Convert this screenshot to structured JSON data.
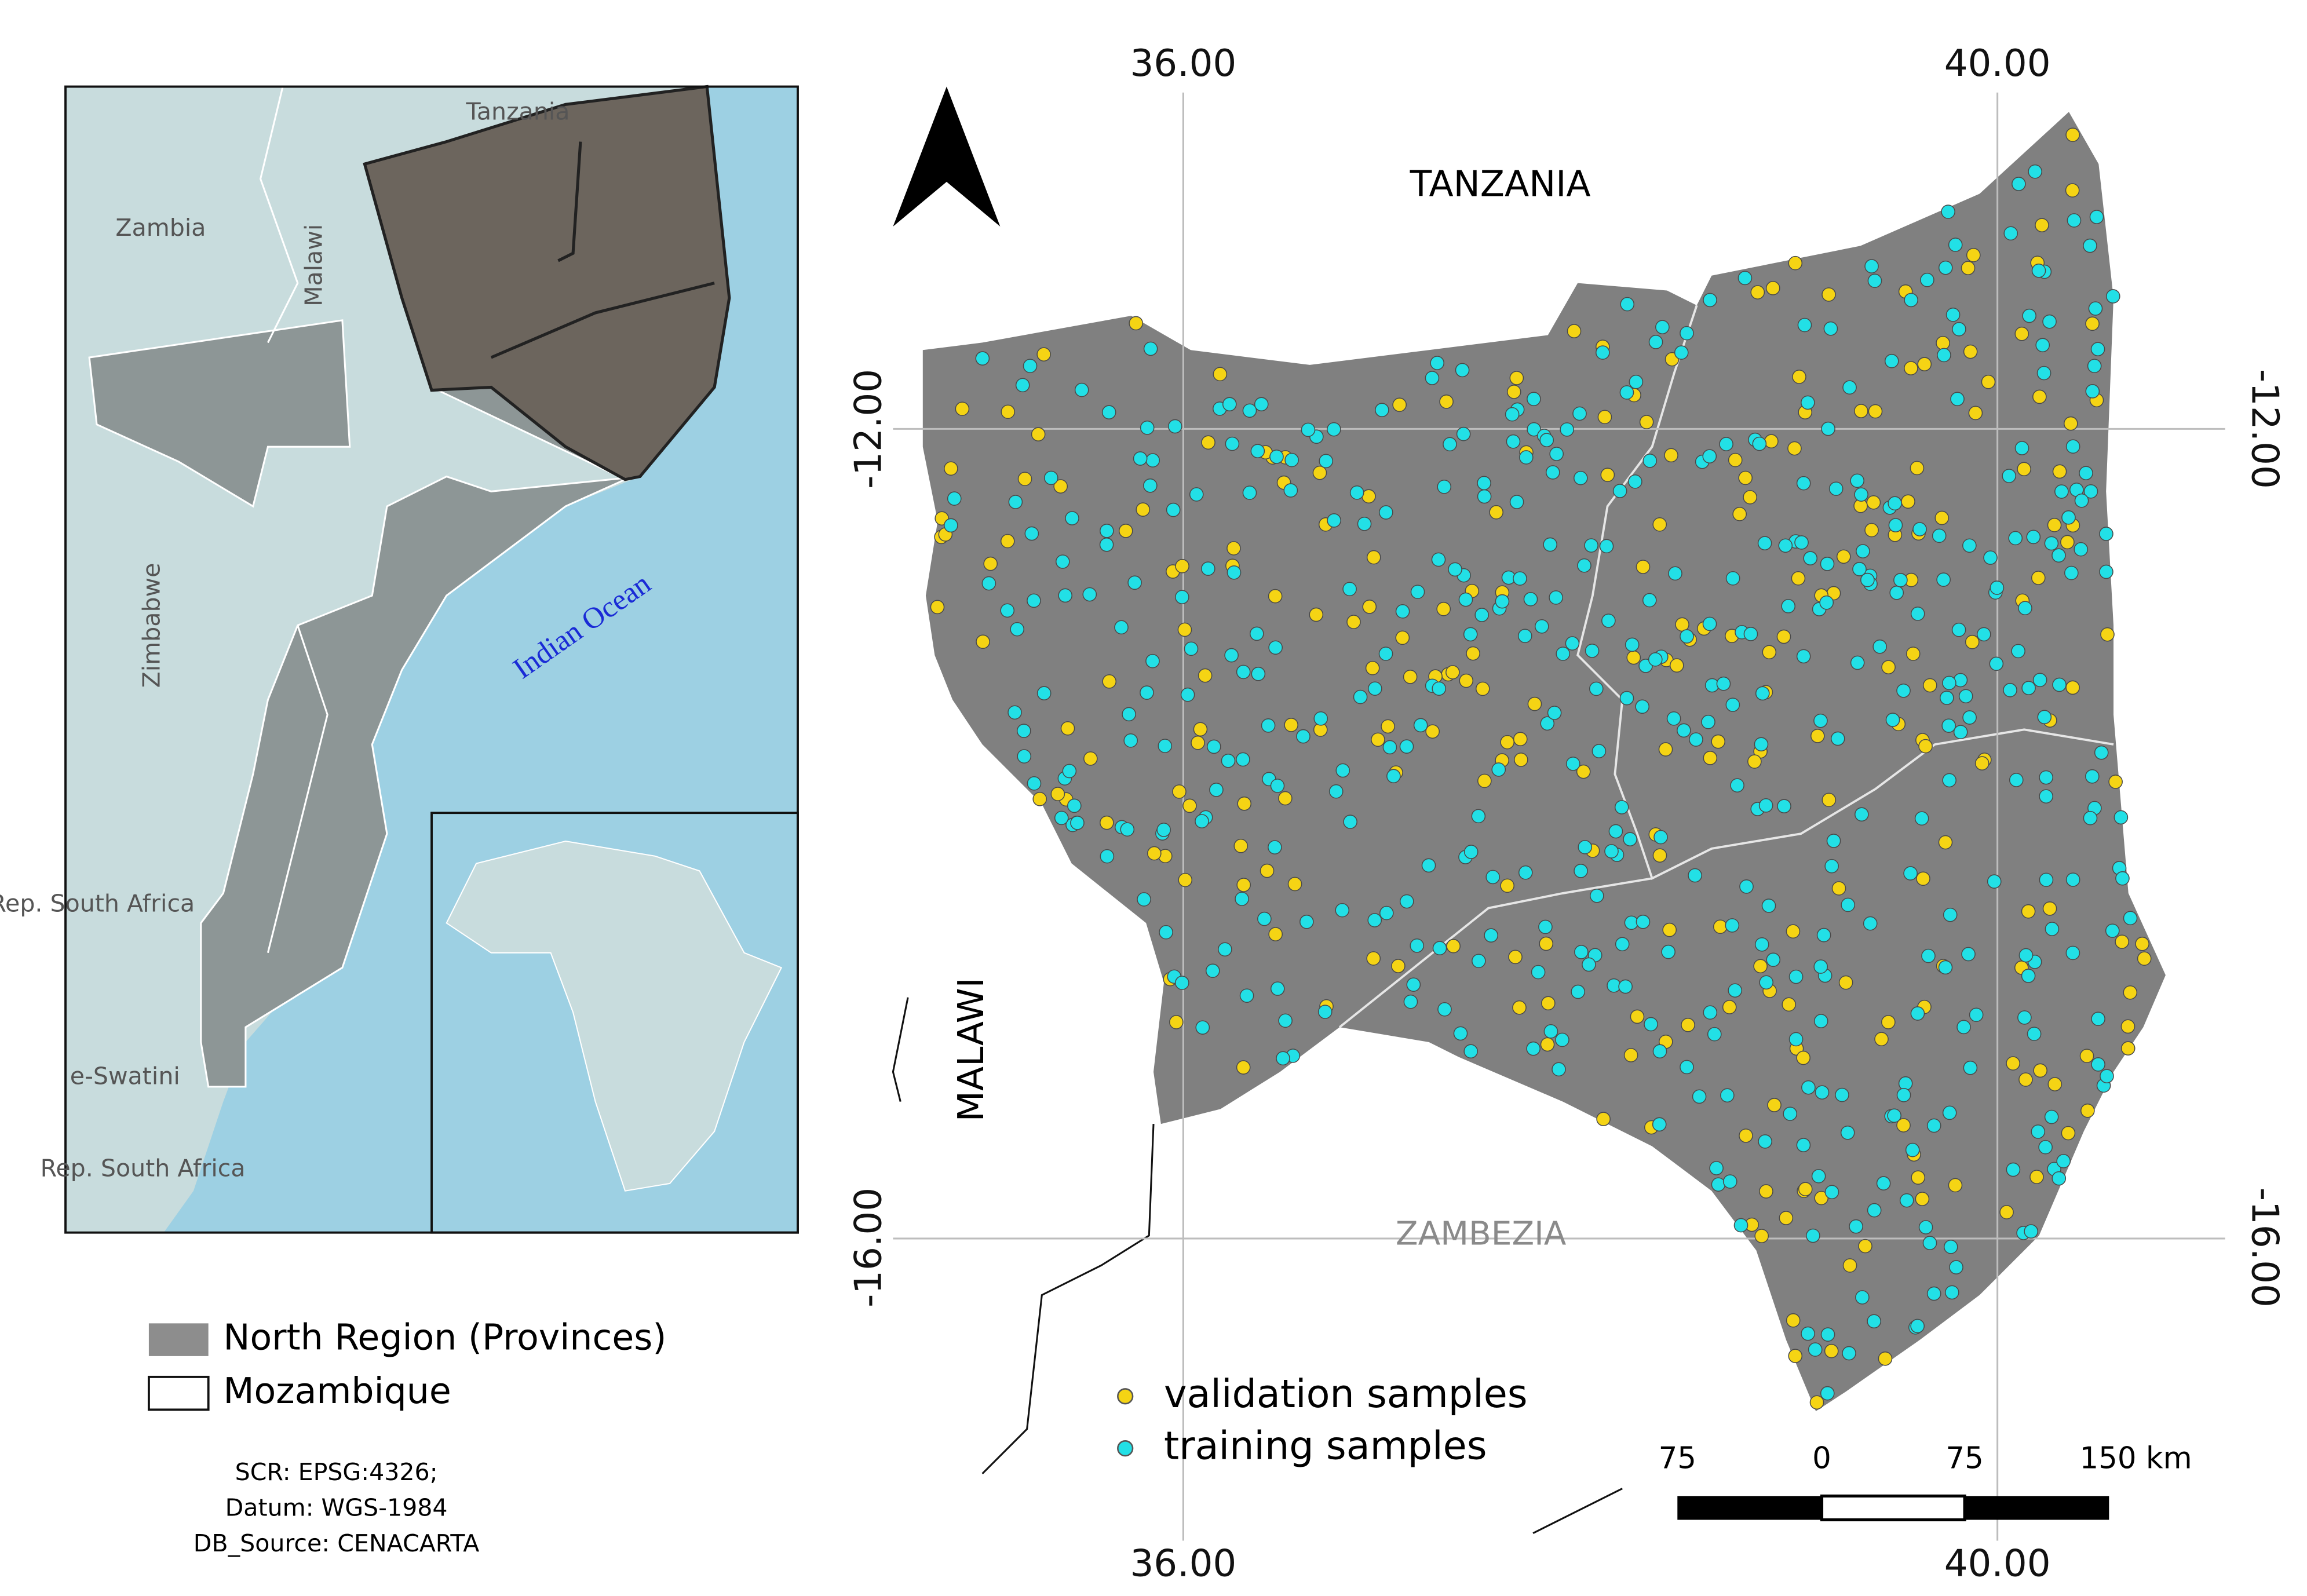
{
  "inset_map": {
    "labels": {
      "tanzania": "Tanzania",
      "zambia": "Zambia",
      "malawi": "Malawi",
      "zimbabwe": "Zimbabwe",
      "ocean": "Indian Ocean",
      "south_africa_1": "Rep. South Africa",
      "eswatini": "e-Swatini",
      "south_africa_2": "Rep. South Africa"
    }
  },
  "inset_legend": {
    "items": [
      "North Region (Provinces)",
      "Mozambique"
    ]
  },
  "metadata": [
    "SCR: EPSG:4326;",
    "Datum: WGS-1984",
    "DB_Source: CENACARTA"
  ],
  "main_map": {
    "labels": {
      "tanzania": "TANZANIA",
      "malawi": "MALAWI",
      "zambezia": "ZAMBEZIA"
    },
    "graticule": {
      "top": [
        "36.00",
        "40.00"
      ],
      "bottom": [
        "36.00",
        "40.00"
      ],
      "left": [
        "-12.00",
        "-16.00"
      ],
      "right": [
        "-12.00",
        "-16.00"
      ]
    },
    "legend": [
      "validation samples",
      "training samples"
    ],
    "scale_bar": [
      "75",
      "0",
      "75",
      "150 km"
    ]
  }
}
